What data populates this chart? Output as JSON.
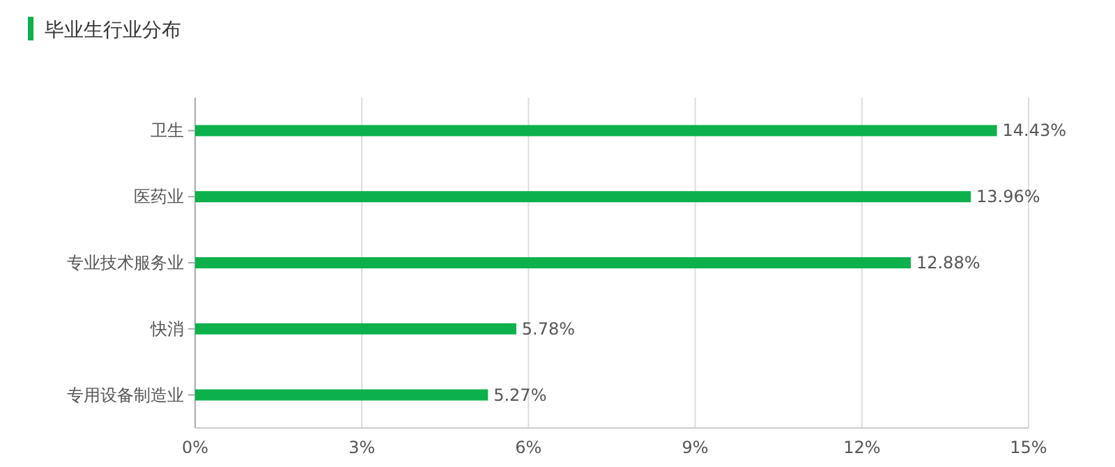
{
  "chart_data": {
    "type": "bar",
    "orientation": "horizontal",
    "title": "毕业生行业分布",
    "categories": [
      "卫生",
      "医药业",
      "专业技术服务业",
      "快消",
      "专用设备制造业"
    ],
    "values": [
      14.43,
      13.96,
      12.88,
      5.78,
      5.27
    ],
    "value_labels": [
      "14.43%",
      "13.96%",
      "12.88%",
      "5.78%",
      "5.27%"
    ],
    "color": "#0cb14b",
    "xlim": [
      0,
      15
    ],
    "xticks": [
      {
        "value": 0,
        "label": "0%"
      },
      {
        "value": 3,
        "label": "3%"
      },
      {
        "value": 6,
        "label": "6%"
      },
      {
        "value": 9,
        "label": "9%"
      },
      {
        "value": 12,
        "label": "12%"
      },
      {
        "value": 15,
        "label": "15%"
      }
    ],
    "grid": "x"
  }
}
